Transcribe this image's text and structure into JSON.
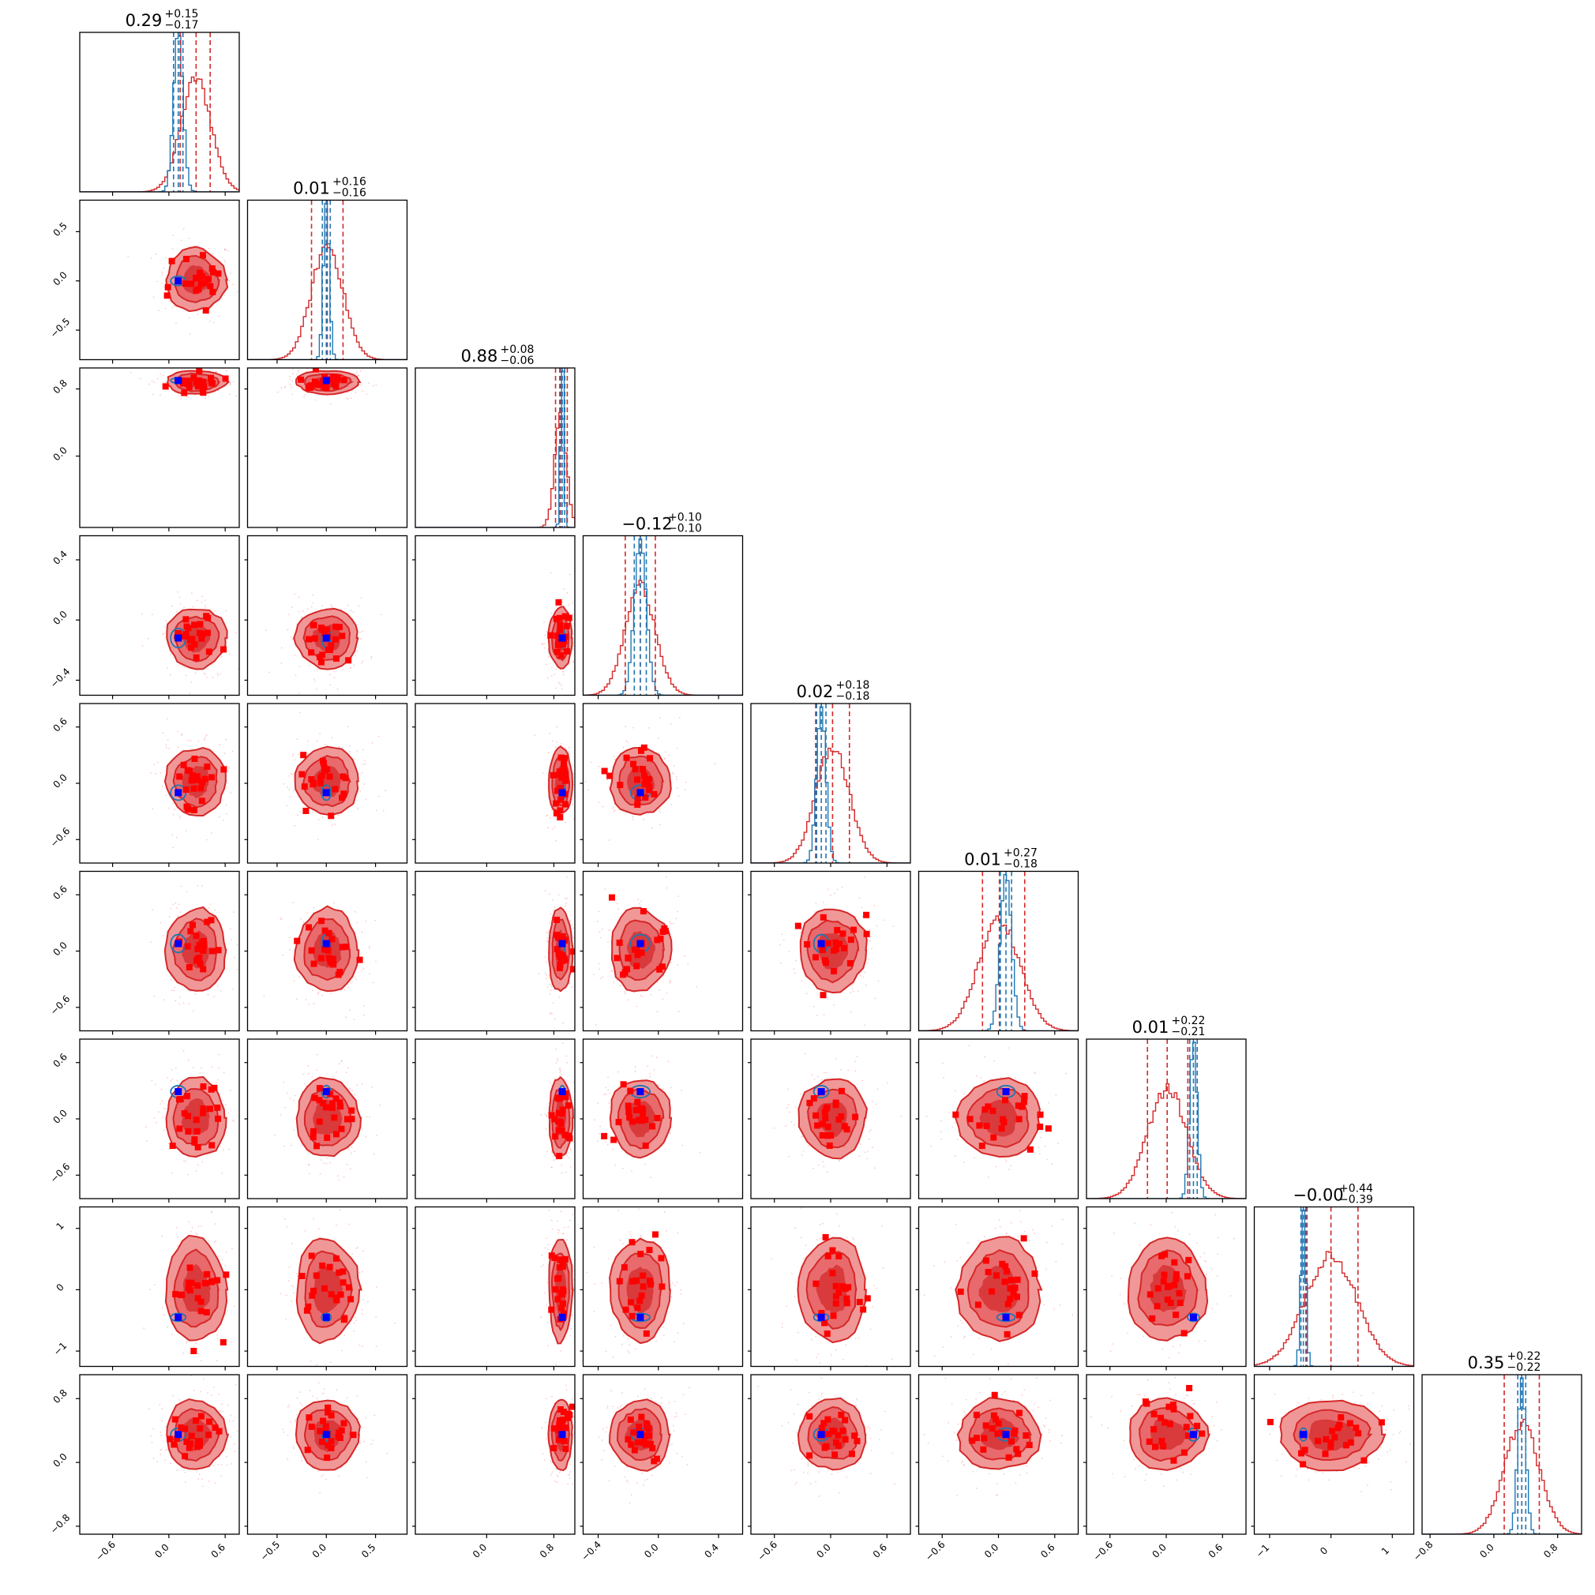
{
  "chart_data": {
    "type": "corner",
    "n_params": 9,
    "grid": false,
    "colors": {
      "posterior": "#d62728",
      "prior": "#1f77b4",
      "truth_marker": "#0000ff",
      "sample_marker": "#ff0000",
      "contour_fill_dark": "#d93a3c",
      "contour_fill_light": "#f09898"
    },
    "titles": [
      {
        "median": "0.29",
        "plus": "+0.15",
        "minus": "−0.17"
      },
      {
        "median": "0.01",
        "plus": "+0.16",
        "minus": "−0.16"
      },
      {
        "median": "0.88",
        "plus": "+0.08",
        "minus": "−0.06"
      },
      {
        "median": "−0.12",
        "plus": "+0.10",
        "minus": "−0.10"
      },
      {
        "median": "0.02",
        "plus": "+0.18",
        "minus": "−0.18"
      },
      {
        "median": "0.01",
        "plus": "+0.27",
        "minus": "−0.18"
      },
      {
        "median": "0.01",
        "plus": "+0.22",
        "minus": "−0.21"
      },
      {
        "median": "−0.00",
        "plus": "+0.44",
        "minus": "−0.39"
      },
      {
        "median": "0.35",
        "plus": "+0.22",
        "minus": "−0.22"
      }
    ],
    "ranges": [
      [
        -0.95,
        0.75
      ],
      [
        -0.8,
        0.82
      ],
      [
        -0.85,
        1.05
      ],
      [
        -0.5,
        0.56
      ],
      [
        -0.85,
        0.85
      ],
      [
        -0.85,
        0.85
      ],
      [
        -0.85,
        0.85
      ],
      [
        -1.25,
        1.35
      ],
      [
        -0.9,
        1.1
      ]
    ],
    "xticks": [
      {
        "values": [
          -0.6,
          0.0,
          0.6
        ],
        "labels": [
          "−0.6",
          "0.0",
          "0.6"
        ]
      },
      {
        "values": [
          -0.5,
          0.0,
          0.5
        ],
        "labels": [
          "−0.5",
          "0.0",
          "0.5"
        ]
      },
      {
        "values": [
          0.0,
          0.8
        ],
        "labels": [
          "0.0",
          "0.8"
        ]
      },
      {
        "values": [
          -0.4,
          0.0,
          0.4
        ],
        "labels": [
          "−0.4",
          "0.0",
          "0.4"
        ]
      },
      {
        "values": [
          -0.6,
          0.0,
          0.6
        ],
        "labels": [
          "−0.6",
          "0.0",
          "0.6"
        ]
      },
      {
        "values": [
          -0.6,
          0.0,
          0.6
        ],
        "labels": [
          "−0.6",
          "0.0",
          "0.6"
        ]
      },
      {
        "values": [
          -0.6,
          0.0,
          0.6
        ],
        "labels": [
          "−0.6",
          "0.0",
          "0.6"
        ]
      },
      {
        "values": [
          -1,
          0,
          1
        ],
        "labels": [
          "−1",
          "0",
          "1"
        ]
      },
      {
        "values": [
          -0.8,
          0.0,
          0.8
        ],
        "labels": [
          "−0.8",
          "0.0",
          "0.8"
        ]
      }
    ],
    "yticks": [
      null,
      {
        "values": [
          -0.5,
          0.0,
          0.5
        ],
        "labels": [
          "−0.5",
          "0.0",
          "0.5"
        ]
      },
      {
        "values": [
          0.0,
          0.8
        ],
        "labels": [
          "0.0",
          "0.8"
        ]
      },
      {
        "values": [
          -0.4,
          0.0,
          0.4
        ],
        "labels": [
          "−0.4",
          "0.0",
          "0.4"
        ]
      },
      {
        "values": [
          -0.6,
          0.0,
          0.6
        ],
        "labels": [
          "−0.6",
          "0.0",
          "0.6"
        ]
      },
      {
        "values": [
          -0.6,
          0.0,
          0.6
        ],
        "labels": [
          "−0.6",
          "0.0",
          "0.6"
        ]
      },
      {
        "values": [
          -0.6,
          0.0,
          0.6
        ],
        "labels": [
          "−0.6",
          "0.0",
          "0.6"
        ]
      },
      {
        "values": [
          -1,
          0,
          1
        ],
        "labels": [
          "−1",
          "0",
          "1"
        ]
      },
      {
        "values": [
          -0.8,
          0.0,
          0.8
        ],
        "labels": [
          "−0.8",
          "0.0",
          "0.8"
        ]
      }
    ],
    "posterior": {
      "median": [
        0.29,
        0.01,
        0.88,
        -0.12,
        0.02,
        0.01,
        0.01,
        0.0,
        0.35
      ],
      "sigma": [
        0.16,
        0.16,
        0.07,
        0.1,
        0.18,
        0.22,
        0.21,
        0.42,
        0.22
      ],
      "quantiles": [
        [
          0.12,
          0.44
        ],
        [
          -0.15,
          0.17
        ],
        [
          0.82,
          0.96
        ],
        [
          -0.22,
          -0.02
        ],
        [
          -0.16,
          0.2
        ],
        [
          -0.17,
          0.28
        ],
        [
          -0.2,
          0.23
        ],
        [
          -0.39,
          0.44
        ],
        [
          0.13,
          0.57
        ]
      ]
    },
    "prior": {
      "median": [
        0.1,
        0.0,
        0.9,
        -0.12,
        -0.1,
        0.08,
        0.29,
        -0.45,
        0.35
      ],
      "sigma": [
        0.05,
        0.03,
        0.02,
        0.04,
        0.05,
        0.06,
        0.04,
        0.04,
        0.05
      ],
      "quantiles": [
        [
          0.05,
          0.15
        ],
        [
          -0.04,
          0.04
        ],
        [
          0.87,
          0.93
        ],
        [
          -0.16,
          -0.08
        ],
        [
          -0.15,
          -0.05
        ],
        [
          0.02,
          0.14
        ],
        [
          0.25,
          0.33
        ],
        [
          -0.49,
          -0.41
        ],
        [
          0.3,
          0.4
        ]
      ]
    },
    "truth": [
      0.1,
      0.0,
      0.9,
      -0.12,
      -0.1,
      0.08,
      0.29,
      -0.45,
      0.35
    ]
  }
}
